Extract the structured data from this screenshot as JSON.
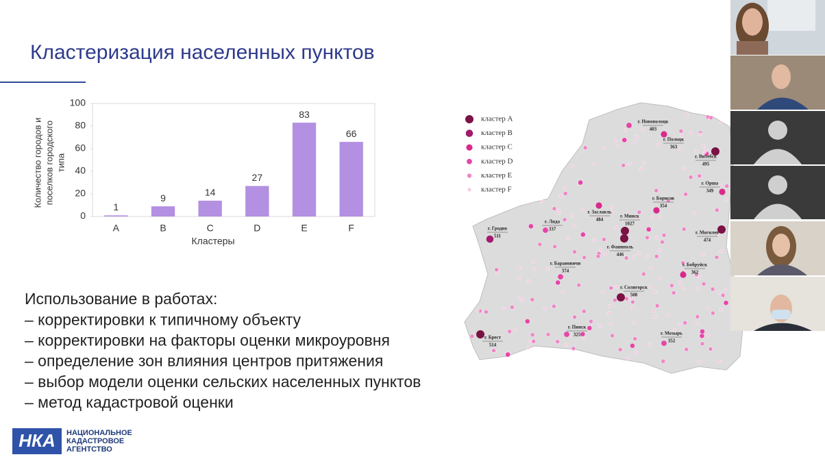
{
  "slide": {
    "title": "Кластеризация населенных пунктов",
    "bullets": [
      "Использование в работах:",
      "– корректировки к типичному объекту",
      "– корректировки на факторы оценки микроуровня",
      "– определение зон влияния центров притяжения",
      "– выбор модели оценки сельских населенных пунктов",
      "– метод кадастровой оценки"
    ],
    "logo": [
      "НАЦИОНАЛЬНОЕ",
      "КАДАСТРОВОЕ",
      "АГЕНТСТВО"
    ]
  },
  "chart_data": {
    "type": "bar",
    "categories": [
      "A",
      "B",
      "C",
      "D",
      "E",
      "F"
    ],
    "values": [
      1,
      9,
      14,
      27,
      83,
      66
    ],
    "color": "#b390e2",
    "ylim": [
      0,
      100
    ],
    "yticks": [
      0,
      20,
      40,
      60,
      80,
      100
    ],
    "xlabel": "Кластеры",
    "ylabel": [
      "Количество городов и",
      "поселков городского",
      "типа"
    ],
    "grid": false
  },
  "map": {
    "legend": [
      {
        "label": "кластер A",
        "color": "#7a1244"
      },
      {
        "label": "кластер B",
        "color": "#a31a6e"
      },
      {
        "label": "кластер C",
        "color": "#d92a8c"
      },
      {
        "label": "кластер D",
        "color": "#e645a7"
      },
      {
        "label": "кластер E",
        "color": "#ee86c6"
      },
      {
        "label": "кластер F",
        "color": "#f6c6e3"
      }
    ],
    "cities": [
      {
        "name": "г. Новополоцк",
        "value": 403
      },
      {
        "name": "г. Полоцк",
        "value": 363
      },
      {
        "name": "г. Витебск",
        "value": 495
      },
      {
        "name": "г. Орша",
        "value": 349
      },
      {
        "name": "г. Борисов",
        "value": 354
      },
      {
        "name": "г. Заславль",
        "value": 484
      },
      {
        "name": "г. Минск",
        "value": 1027
      },
      {
        "name": "г. Лида",
        "value": 337
      },
      {
        "name": "г. Гродно",
        "value": 511
      },
      {
        "name": "г. Фаниполь",
        "value": 446
      },
      {
        "name": "г. Могилев",
        "value": 474
      },
      {
        "name": "г. Барановичи",
        "value": 374
      },
      {
        "name": "г. Бобруйск",
        "value": 362
      },
      {
        "name": "г. Солигорск",
        "value": 508
      },
      {
        "name": "г. Пинск",
        "value": 325
      },
      {
        "name": "г. Брест",
        "value": 514
      },
      {
        "name": "г. Мозырь",
        "value": 352
      }
    ]
  }
}
